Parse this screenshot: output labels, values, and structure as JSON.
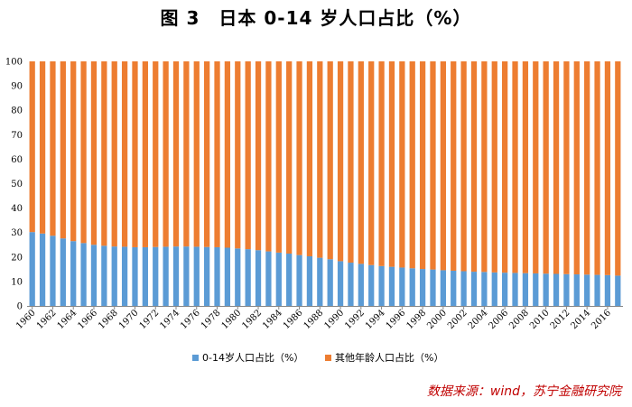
{
  "title": "图 3　日本 0-14 岁人口占比（%）",
  "source": "数据来源：wind，苏宁金融研究院",
  "colors": {
    "young": "#5b9bd5",
    "other": "#ed7d31",
    "grid": "#d9d9d9"
  },
  "chart_data": {
    "type": "bar",
    "stacked": true,
    "percent_stacked": true,
    "title": "日本 0-14 岁人口占比（%）",
    "xlabel": "",
    "ylabel": "",
    "ylim": [
      0,
      100
    ],
    "yticks": [
      0,
      10,
      20,
      30,
      40,
      50,
      60,
      70,
      80,
      90,
      100
    ],
    "grid": false,
    "legend_position": "bottom",
    "categories": [
      "1960",
      "1961",
      "1962",
      "1963",
      "1964",
      "1965",
      "1966",
      "1967",
      "1968",
      "1969",
      "1970",
      "1971",
      "1972",
      "1973",
      "1974",
      "1975",
      "1976",
      "1977",
      "1978",
      "1979",
      "1980",
      "1981",
      "1982",
      "1983",
      "1984",
      "1985",
      "1986",
      "1987",
      "1988",
      "1989",
      "1990",
      "1991",
      "1992",
      "1993",
      "1994",
      "1995",
      "1996",
      "1997",
      "1998",
      "1999",
      "2000",
      "2001",
      "2002",
      "2003",
      "2004",
      "2005",
      "2006",
      "2007",
      "2008",
      "2009",
      "2010",
      "2011",
      "2012",
      "2013",
      "2014",
      "2015",
      "2016",
      "2017"
    ],
    "x_tick_labels": [
      "1960",
      "1962",
      "1964",
      "1966",
      "1968",
      "1970",
      "1972",
      "1974",
      "1976",
      "1978",
      "1980",
      "1982",
      "1984",
      "1986",
      "1988",
      "1990",
      "1992",
      "1994",
      "1996",
      "1998",
      "2000",
      "2002",
      "2004",
      "2006",
      "2008",
      "2010",
      "2012",
      "2014",
      "2016"
    ],
    "series": [
      {
        "name": "0-14岁人口占比（%）",
        "color": "#5b9bd5",
        "values": [
          30.2,
          29.6,
          28.7,
          27.6,
          26.5,
          25.7,
          25.0,
          24.6,
          24.3,
          24.2,
          24.0,
          24.0,
          24.1,
          24.2,
          24.3,
          24.3,
          24.2,
          24.1,
          24.0,
          23.8,
          23.5,
          23.2,
          22.8,
          22.3,
          21.8,
          21.4,
          20.8,
          20.3,
          19.7,
          19.1,
          18.3,
          17.7,
          17.2,
          16.7,
          16.3,
          16.0,
          15.7,
          15.4,
          15.1,
          14.9,
          14.6,
          14.4,
          14.2,
          14.0,
          13.9,
          13.7,
          13.6,
          13.5,
          13.4,
          13.3,
          13.2,
          13.1,
          13.0,
          12.9,
          12.8,
          12.7,
          12.6,
          12.4
        ]
      },
      {
        "name": "其他年龄人口占比（%）",
        "color": "#ed7d31",
        "values": [
          69.8,
          70.4,
          71.3,
          72.4,
          73.5,
          74.3,
          75.0,
          75.4,
          75.7,
          75.8,
          76.0,
          76.0,
          75.9,
          75.8,
          75.7,
          75.7,
          75.8,
          75.9,
          76.0,
          76.2,
          76.5,
          76.8,
          77.2,
          77.7,
          78.2,
          78.6,
          79.2,
          79.7,
          80.3,
          80.9,
          81.7,
          82.3,
          82.8,
          83.3,
          83.7,
          84.0,
          84.3,
          84.6,
          84.9,
          85.1,
          85.4,
          85.6,
          85.8,
          86.0,
          86.1,
          86.3,
          86.4,
          86.5,
          86.6,
          86.7,
          86.8,
          86.9,
          87.0,
          87.1,
          87.2,
          87.3,
          87.4,
          87.6
        ]
      }
    ]
  }
}
